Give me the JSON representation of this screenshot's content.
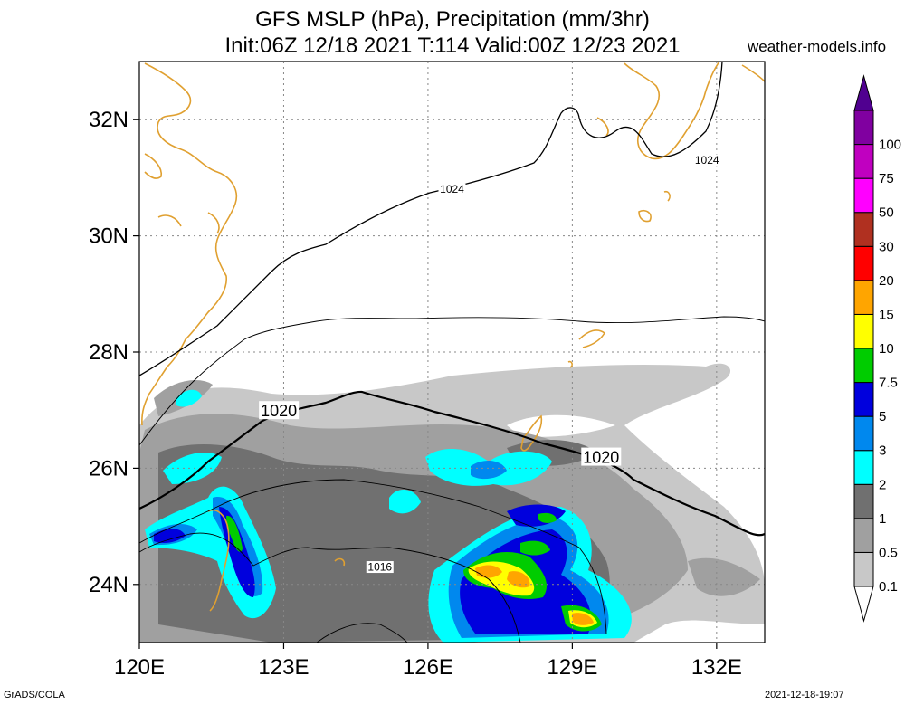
{
  "header": {
    "title_line1": "GFS MSLP (hPa), Precipitation (mm/3hr)",
    "title_line2": "Init:06Z 12/18 2021 T:114 Valid:00Z 12/23 2021",
    "site": "weather-models.info"
  },
  "footer": {
    "left": "GrADS/COLA",
    "right": "2021-12-18-19:07"
  },
  "map": {
    "lon_range": [
      120,
      133
    ],
    "lat_range": [
      23,
      33
    ],
    "lat_ticks": [
      {
        "value": 32,
        "label": "32N"
      },
      {
        "value": 30,
        "label": "30N"
      },
      {
        "value": 28,
        "label": "28N"
      },
      {
        "value": 26,
        "label": "26N"
      },
      {
        "value": 24,
        "label": "24N"
      }
    ],
    "lon_ticks": [
      {
        "value": 120,
        "label": "120E"
      },
      {
        "value": 123,
        "label": "123E"
      },
      {
        "value": 126,
        "label": "126E"
      },
      {
        "value": 129,
        "label": "129E"
      },
      {
        "value": 132,
        "label": "132E"
      }
    ],
    "grid": true,
    "coastline_color": "#e0a030",
    "isobar_labels": [
      {
        "text": "1024",
        "lon": 126.5,
        "lat": 30.8
      },
      {
        "text": "1024",
        "lon": 131.8,
        "lat": 31.3
      },
      {
        "text": "1020",
        "lon": 122.9,
        "lat": 27.0
      },
      {
        "text": "1020",
        "lon": 129.6,
        "lat": 26.2
      },
      {
        "text": "1016",
        "lon": 125.0,
        "lat": 24.3
      }
    ]
  },
  "colorbar": {
    "levels": [
      {
        "label": "0.1",
        "color": "#c8c8c8"
      },
      {
        "label": "0.5",
        "color": "#a0a0a0"
      },
      {
        "label": "1",
        "color": "#707070"
      },
      {
        "label": "2",
        "color": "#00ffff"
      },
      {
        "label": "3",
        "color": "#0088ee"
      },
      {
        "label": "5",
        "color": "#0000dd"
      },
      {
        "label": "7.5",
        "color": "#00cc00"
      },
      {
        "label": "10",
        "color": "#ffff00"
      },
      {
        "label": "15",
        "color": "#ffa500"
      },
      {
        "label": "20",
        "color": "#ff0000"
      },
      {
        "label": "30",
        "color": "#b03020"
      },
      {
        "label": "50",
        "color": "#ff00ff"
      },
      {
        "label": "75",
        "color": "#c000c0"
      },
      {
        "label": "100",
        "color": "#8000a0"
      }
    ],
    "top_color": "#500090"
  }
}
